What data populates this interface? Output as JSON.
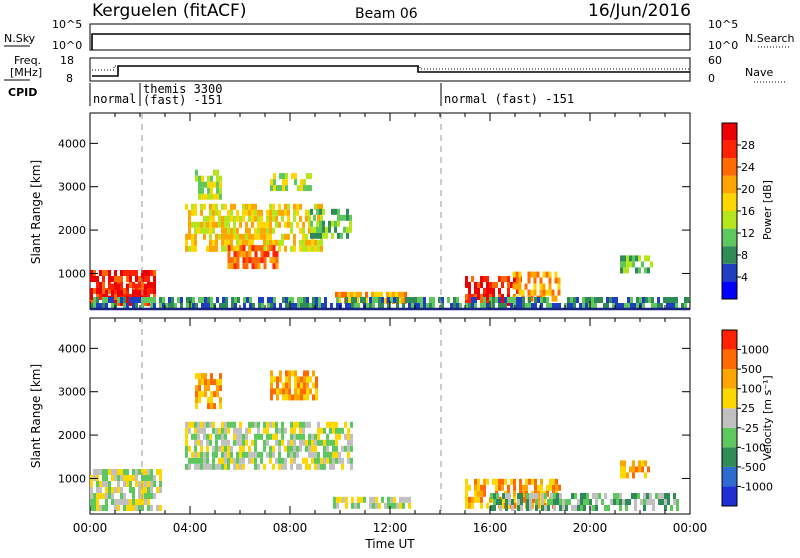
{
  "header": {
    "station": "Kerguelen (fitACF)",
    "beam": "Beam 06",
    "date": "16/Jun/2016"
  },
  "panels": {
    "nsky": {
      "left_label": "N.Sky",
      "right_label": "N.Search",
      "left_ticks": [
        "10^5",
        "10^0"
      ],
      "right_ticks": [
        "10^5",
        "10^0"
      ]
    },
    "freq": {
      "left_label_line1": "Freq.",
      "left_label_line2": "[MHz]",
      "right_label": "Nave",
      "left_ticks": [
        "18",
        "8"
      ],
      "right_ticks": [
        "60",
        "0"
      ]
    },
    "cpid": {
      "label": "CPID",
      "segments": [
        {
          "text": "normal",
          "start_hour": 0
        },
        {
          "text": "themis 3300",
          "text2": "(fast) -151",
          "start_hour": 2
        },
        {
          "text": "normal (fast) -151",
          "start_hour": 14
        }
      ]
    }
  },
  "x_axis": {
    "label": "Time UT",
    "ticks": [
      "00:00",
      "04:00",
      "08:00",
      "12:00",
      "16:00",
      "20:00",
      "00:00"
    ]
  },
  "chart_data": [
    {
      "type": "heatmap",
      "ylabel": "Slant Range [km]",
      "ylim": [
        180,
        4700
      ],
      "yticks": [
        "1000",
        "2000",
        "3000",
        "4000"
      ],
      "xlim_hours": [
        0,
        24
      ],
      "colorbar": {
        "label": "Power [dB]",
        "ticks": [
          "28",
          "24",
          "20",
          "16",
          "12",
          "8",
          "4"
        ],
        "colors": [
          "#0000ff",
          "#1e3fc0",
          "#2e8b57",
          "#5ec85e",
          "#b5e61d",
          "#ffd700",
          "#ffa500",
          "#ff6a00",
          "#ff2200",
          "#ee0000"
        ]
      },
      "echo_regions": [
        {
          "t0": 0.0,
          "t1": 2.6,
          "r0": 250,
          "r1": 950,
          "level": 8
        },
        {
          "t0": 0.6,
          "t1": 2.2,
          "r0": 350,
          "r1": 700,
          "level": 9
        },
        {
          "t0": 3.8,
          "t1": 9.2,
          "r0": 1500,
          "r1": 2600,
          "level": 5
        },
        {
          "t0": 5.5,
          "t1": 7.5,
          "r0": 1100,
          "r1": 1600,
          "level": 7
        },
        {
          "t0": 4.2,
          "t1": 5.2,
          "r0": 2700,
          "r1": 3300,
          "level": 4
        },
        {
          "t0": 7.2,
          "t1": 8.8,
          "r0": 2900,
          "r1": 3300,
          "level": 4
        },
        {
          "t0": 8.8,
          "t1": 10.4,
          "r0": 1800,
          "r1": 2400,
          "level": 3
        },
        {
          "t0": 9.8,
          "t1": 12.6,
          "r0": 300,
          "r1": 550,
          "level": 6
        },
        {
          "t0": 15.0,
          "t1": 17.2,
          "r0": 250,
          "r1": 900,
          "level": 8
        },
        {
          "t0": 16.9,
          "t1": 18.8,
          "r0": 350,
          "r1": 1000,
          "level": 6
        },
        {
          "t0": 21.2,
          "t1": 22.5,
          "r0": 1000,
          "r1": 1400,
          "level": 3
        },
        {
          "t0": 0.0,
          "t1": 24.0,
          "r0": 180,
          "r1": 330,
          "level": 2
        }
      ]
    },
    {
      "type": "heatmap",
      "ylabel": "Slant Range [km]",
      "ylim": [
        180,
        4700
      ],
      "yticks": [
        "1000",
        "2000",
        "3000",
        "4000"
      ],
      "xlim_hours": [
        0,
        24
      ],
      "colorbar": {
        "label": "Velocity [m s⁻¹]",
        "ticks": [
          "1000",
          "500",
          "100",
          "25",
          "-25",
          "-100",
          "-500",
          "-1000"
        ],
        "colors": [
          "#1e2fd6",
          "#2c6bd0",
          "#2e8b57",
          "#5ec85e",
          "#c0c0c0",
          "#ffd700",
          "#ffa500",
          "#ff6a00",
          "#ff2200"
        ]
      },
      "echo_regions": [
        {
          "t0": 0.0,
          "t1": 2.8,
          "r0": 250,
          "r1": 1100,
          "level": 4
        },
        {
          "t0": 3.8,
          "t1": 10.5,
          "r0": 1200,
          "r1": 2300,
          "level": 4
        },
        {
          "t0": 4.2,
          "t1": 5.2,
          "r0": 2600,
          "r1": 3300,
          "level": 6
        },
        {
          "t0": 7.2,
          "t1": 9.0,
          "r0": 2800,
          "r1": 3400,
          "level": 6
        },
        {
          "t0": 9.6,
          "t1": 12.8,
          "r0": 300,
          "r1": 550,
          "level": 4
        },
        {
          "t0": 15.0,
          "t1": 18.8,
          "r0": 300,
          "r1": 900,
          "level": 6
        },
        {
          "t0": 16.0,
          "t1": 23.5,
          "r0": 250,
          "r1": 550,
          "level": 3
        },
        {
          "t0": 21.2,
          "t1": 22.4,
          "r0": 1000,
          "r1": 1300,
          "level": 6
        }
      ]
    }
  ]
}
